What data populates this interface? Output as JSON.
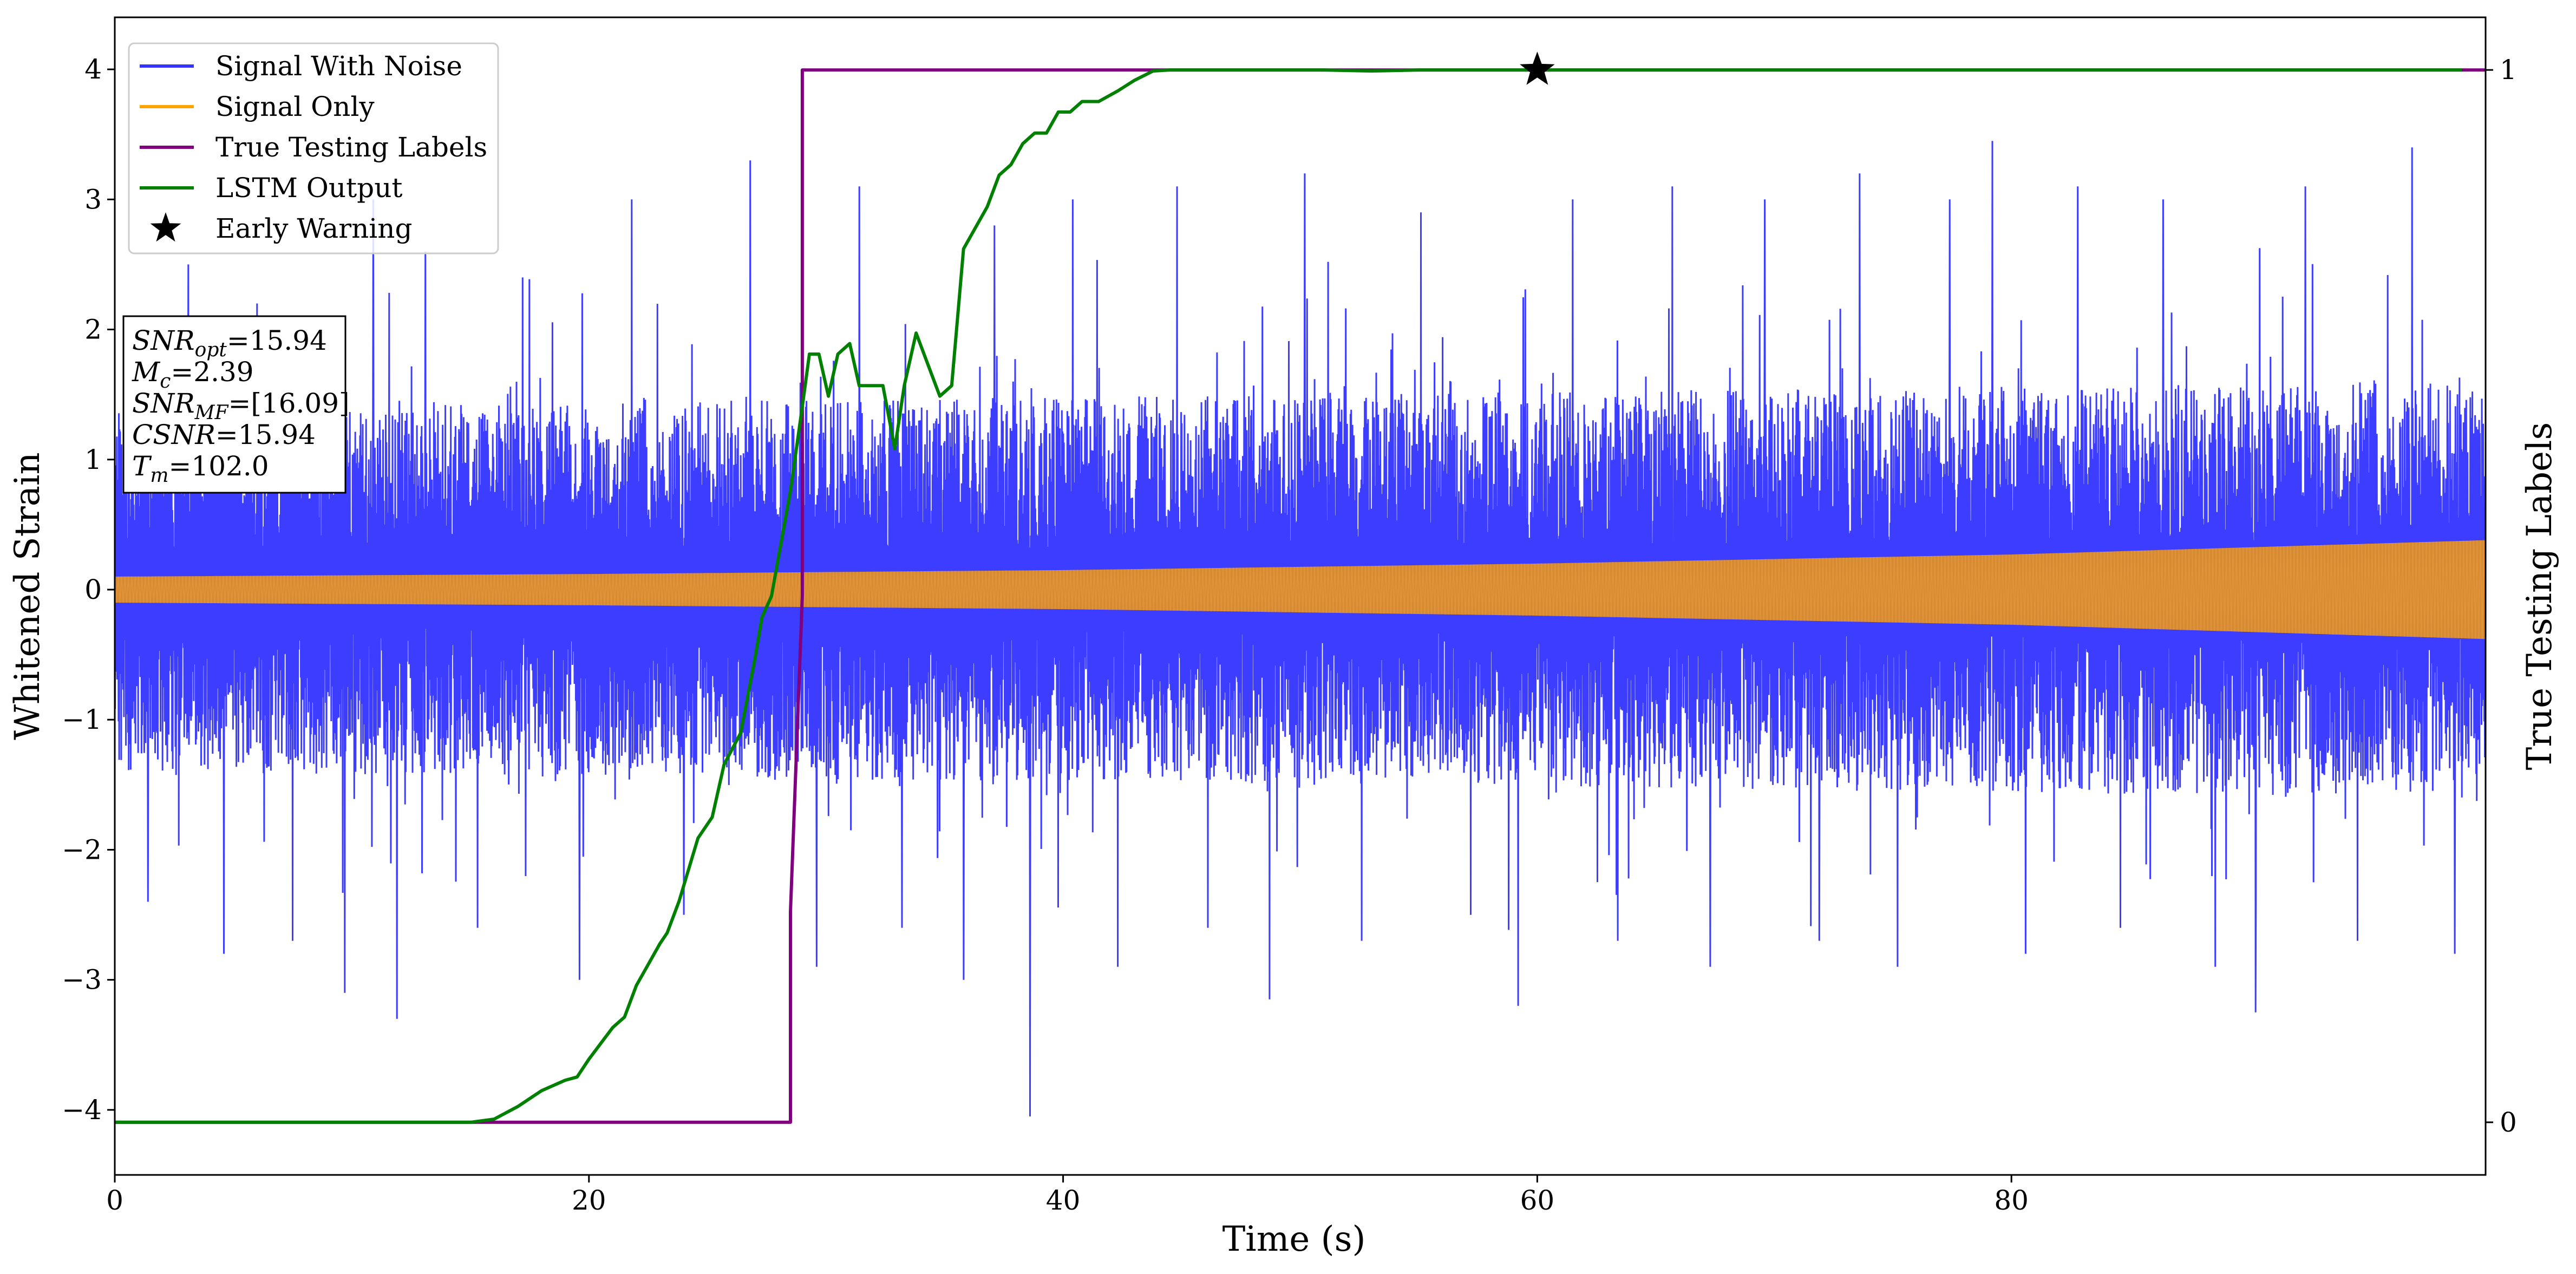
{
  "chart_data": {
    "type": "line",
    "xlabel": "Time (s)",
    "ylabel": "Whitened Strain",
    "y2label": "True Testing Labels",
    "xlim": [
      0,
      100
    ],
    "ylim": [
      -4.5,
      4.4
    ],
    "y2lim": [
      -0.05,
      1.05
    ],
    "x_ticks": [
      0,
      20,
      40,
      60,
      80
    ],
    "y_ticks": [
      -4,
      -3,
      -2,
      -1,
      0,
      1,
      2,
      3,
      4
    ],
    "y2_ticks": [
      0,
      1
    ],
    "x_tick_labels": [
      "0",
      "20",
      "40",
      "60",
      "80"
    ],
    "y_tick_labels": [
      "−4",
      "−3",
      "−2",
      "−1",
      "0",
      "1",
      "2",
      "3",
      "4"
    ],
    "y2_tick_labels": [
      "0",
      "1"
    ],
    "grid": false,
    "legend_position": "top-left",
    "series": [
      {
        "name": "Signal With Noise",
        "axis": "left",
        "color": "#3333ff",
        "style": "dense noise trace",
        "core_envelope": [
          [
            0,
            1.4
          ],
          [
            100,
            1.6
          ]
        ],
        "spikes": [
          [
            0.6,
            2.1
          ],
          [
            1.4,
            -2.4
          ],
          [
            3.1,
            2.5
          ],
          [
            4.6,
            -2.8
          ],
          [
            6.0,
            2.2
          ],
          [
            7.5,
            -2.7
          ],
          [
            9.7,
            -3.1
          ],
          [
            10.9,
            3.0
          ],
          [
            11.9,
            -3.3
          ],
          [
            13.1,
            2.6
          ],
          [
            15.3,
            -2.6
          ],
          [
            17.2,
            2.4
          ],
          [
            19.6,
            -3.0
          ],
          [
            21.8,
            3.0
          ],
          [
            24.0,
            -2.5
          ],
          [
            26.8,
            3.3
          ],
          [
            29.6,
            -2.9
          ],
          [
            31.4,
            3.1
          ],
          [
            33.2,
            -2.6
          ],
          [
            35.8,
            -3.0
          ],
          [
            37.1,
            2.8
          ],
          [
            38.6,
            -4.05
          ],
          [
            40.4,
            3.0
          ],
          [
            42.3,
            -2.9
          ],
          [
            44.8,
            3.1
          ],
          [
            46.1,
            -2.6
          ],
          [
            48.7,
            -3.15
          ],
          [
            50.2,
            3.2
          ],
          [
            52.6,
            -2.7
          ],
          [
            55.1,
            2.9
          ],
          [
            57.2,
            -2.5
          ],
          [
            59.2,
            -3.2
          ],
          [
            61.5,
            3.0
          ],
          [
            63.4,
            -2.7
          ],
          [
            65.7,
            3.1
          ],
          [
            67.3,
            -2.9
          ],
          [
            69.6,
            3.0
          ],
          [
            71.9,
            -2.7
          ],
          [
            73.6,
            3.2
          ],
          [
            75.2,
            -2.9
          ],
          [
            77.4,
            3.0
          ],
          [
            79.2,
            3.45
          ],
          [
            80.6,
            -2.8
          ],
          [
            82.8,
            3.1
          ],
          [
            84.6,
            -2.6
          ],
          [
            86.4,
            3.0
          ],
          [
            88.6,
            -2.9
          ],
          [
            90.3,
            -3.25
          ],
          [
            92.4,
            3.1
          ],
          [
            94.6,
            -2.7
          ],
          [
            96.9,
            3.4
          ],
          [
            98.7,
            -2.8
          ]
        ]
      },
      {
        "name": "Signal Only",
        "axis": "left",
        "color": "#ffa500",
        "style": "chirp envelope",
        "amplitude": [
          [
            0,
            0.1
          ],
          [
            20,
            0.12
          ],
          [
            40,
            0.15
          ],
          [
            60,
            0.2
          ],
          [
            80,
            0.27
          ],
          [
            100,
            0.38
          ]
        ]
      },
      {
        "name": "True Testing Labels",
        "axis": "right",
        "color": "#800080",
        "x": [
          0,
          28.5,
          28.5,
          29.0,
          29.0,
          100
        ],
        "y": [
          0,
          0,
          0.2,
          0.5,
          1,
          1
        ]
      },
      {
        "name": "LSTM Output",
        "axis": "right",
        "color": "#008000",
        "x": [
          0,
          15.0,
          16.0,
          17.0,
          18.0,
          19.0,
          19.5,
          20.0,
          21.0,
          21.5,
          22.0,
          22.5,
          23.0,
          23.3,
          23.8,
          24.2,
          24.6,
          25.2,
          25.7,
          26.4,
          27.0,
          27.3,
          27.7,
          28.1,
          28.5,
          29.0,
          29.3,
          29.7,
          30.1,
          30.5,
          31.0,
          31.4,
          31.9,
          32.4,
          32.9,
          33.3,
          33.8,
          34.3,
          34.8,
          35.3,
          35.8,
          36.3,
          36.8,
          37.3,
          37.8,
          38.3,
          38.8,
          39.3,
          39.8,
          40.3,
          40.8,
          41.5,
          42.3,
          43.0,
          43.8,
          44.5,
          45.5,
          47.0,
          49.0,
          51.0,
          53.0,
          55.0,
          57.0,
          59.0,
          60.0,
          61.0,
          63.0,
          70.0,
          80.0,
          90.0,
          99.0
        ],
        "y": [
          0,
          0,
          0.003,
          0.015,
          0.03,
          0.04,
          0.043,
          0.06,
          0.09,
          0.1,
          0.13,
          0.15,
          0.17,
          0.18,
          0.21,
          0.24,
          0.27,
          0.29,
          0.34,
          0.37,
          0.44,
          0.48,
          0.5,
          0.55,
          0.6,
          0.68,
          0.73,
          0.73,
          0.69,
          0.73,
          0.74,
          0.7,
          0.7,
          0.7,
          0.64,
          0.7,
          0.75,
          0.72,
          0.69,
          0.7,
          0.83,
          0.85,
          0.87,
          0.9,
          0.91,
          0.93,
          0.94,
          0.94,
          0.96,
          0.96,
          0.97,
          0.97,
          0.98,
          0.99,
          0.999,
          1.0,
          1.0,
          1.0,
          1.0,
          1.0,
          0.999,
          1.0,
          1.0,
          1.0,
          1.0,
          1.0,
          1.0,
          1.0,
          1.0,
          1.0,
          1.0
        ]
      },
      {
        "name": "Early Warning",
        "axis": "right",
        "color": "#000000",
        "marker": "star",
        "x": [
          60.0
        ],
        "y": [
          1.0
        ]
      }
    ],
    "annotation_lines": [
      {
        "label": "SNR",
        "sub": "opt",
        "value": "=15.94"
      },
      {
        "label": "M",
        "sub": "c",
        "value": "=2.39"
      },
      {
        "label": "SNR",
        "sub": "MF",
        "value": "=[16.09]"
      },
      {
        "label": "CSNR",
        "sub": "",
        "value": "=15.94"
      },
      {
        "label": "T",
        "sub": "m",
        "value": "=102.0"
      }
    ]
  }
}
